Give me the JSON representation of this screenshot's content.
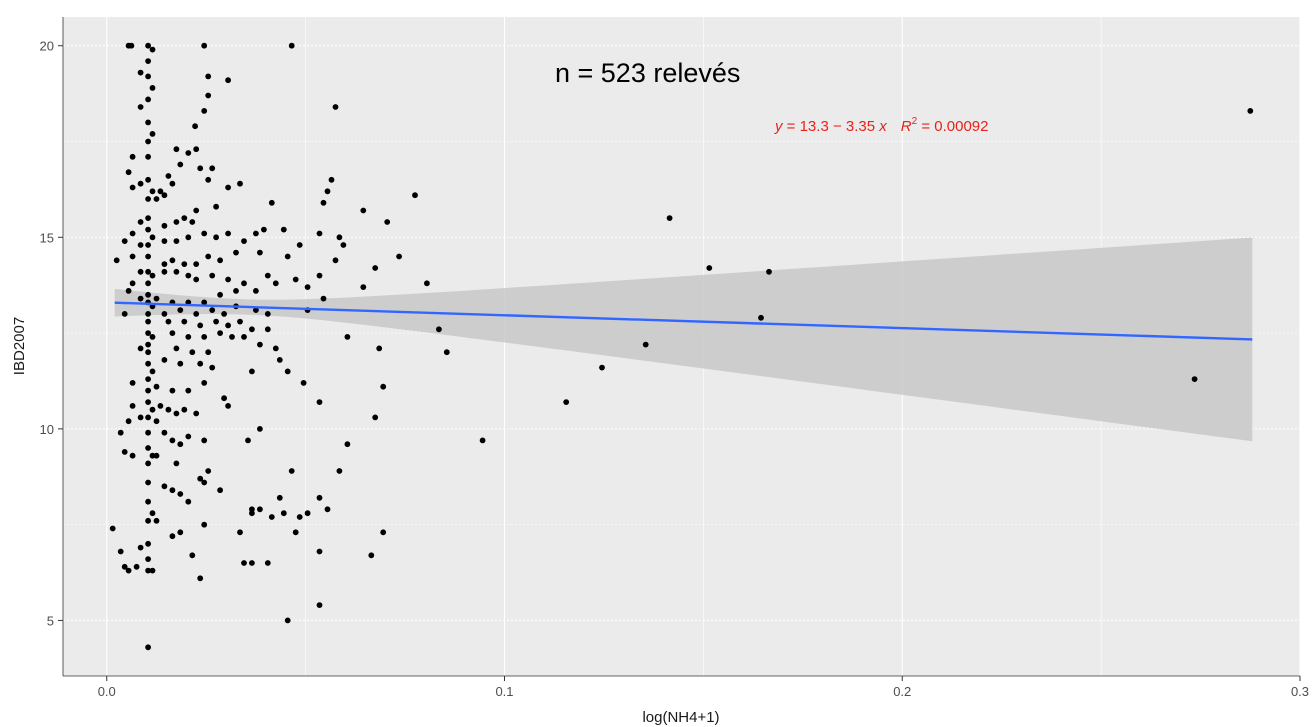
{
  "chart_data": {
    "type": "scatter",
    "xlabel": "log(NH4+1)",
    "ylabel": "IBD2007",
    "xlim": [
      -0.011,
      0.3
    ],
    "ylim": [
      3.55,
      20.75
    ],
    "x_ticks": [
      0.0,
      0.1,
      0.2,
      0.3
    ],
    "x_tick_labels": [
      "0.0",
      "0.1",
      "0.2",
      "0.3"
    ],
    "y_ticks": [
      5,
      10,
      15,
      20
    ],
    "y_tick_labels": [
      "5",
      "10",
      "15",
      "20"
    ],
    "grid": true,
    "annotations": {
      "n_label": "n = 523 relevés",
      "equation": {
        "y_part": "y",
        "body": " = 13.3 − 3.35 ",
        "x_part": "x",
        "r_part": "R",
        "sup": "2",
        "r_value": " = 0.00092"
      }
    },
    "regression": {
      "intercept": 13.3,
      "slope": -3.35,
      "r2": 0.00092,
      "x_range": [
        0.002,
        0.288
      ],
      "ci_lower_start": 12.95,
      "ci_upper_start": 13.67,
      "ci_lower_end": 9.68,
      "ci_upper_end": 15.0,
      "ci_narrowest_x": 0.035
    },
    "colors": {
      "panel": "#EBEBEB",
      "grid": "#ffffff",
      "points": "#000000",
      "line": "#3366FF",
      "ribbon": "#C8C8C8",
      "equation": "#E8221A"
    },
    "points": [
      [
        0.0104,
        20.0
      ],
      [
        0.0104,
        19.6
      ],
      [
        0.0104,
        19.2
      ],
      [
        0.0104,
        18.6
      ],
      [
        0.0104,
        18.0
      ],
      [
        0.0104,
        17.5
      ],
      [
        0.0104,
        17.1
      ],
      [
        0.0104,
        16.5
      ],
      [
        0.0104,
        16.0
      ],
      [
        0.0104,
        15.5
      ],
      [
        0.0104,
        15.2
      ],
      [
        0.0104,
        14.8
      ],
      [
        0.0104,
        14.5
      ],
      [
        0.0104,
        14.1
      ],
      [
        0.0104,
        13.8
      ],
      [
        0.0104,
        13.5
      ],
      [
        0.0104,
        13.3
      ],
      [
        0.0104,
        13.0
      ],
      [
        0.0104,
        12.8
      ],
      [
        0.0104,
        12.5
      ],
      [
        0.0104,
        12.2
      ],
      [
        0.0104,
        12.0
      ],
      [
        0.0104,
        11.7
      ],
      [
        0.0104,
        11.3
      ],
      [
        0.0104,
        11.0
      ],
      [
        0.0104,
        10.7
      ],
      [
        0.0104,
        10.3
      ],
      [
        0.0104,
        9.9
      ],
      [
        0.0104,
        9.5
      ],
      [
        0.0104,
        9.1
      ],
      [
        0.0104,
        8.6
      ],
      [
        0.0104,
        8.1
      ],
      [
        0.0104,
        7.6
      ],
      [
        0.0104,
        7.0
      ],
      [
        0.0104,
        6.6
      ],
      [
        0.0104,
        6.3
      ],
      [
        0.0104,
        4.3
      ],
      [
        0.0115,
        19.9
      ],
      [
        0.0115,
        18.9
      ],
      [
        0.0115,
        17.7
      ],
      [
        0.0115,
        16.2
      ],
      [
        0.0115,
        15.0
      ],
      [
        0.0115,
        14.0
      ],
      [
        0.0115,
        13.2
      ],
      [
        0.0115,
        12.4
      ],
      [
        0.0115,
        11.5
      ],
      [
        0.0115,
        10.5
      ],
      [
        0.0115,
        9.3
      ],
      [
        0.0115,
        7.8
      ],
      [
        0.0055,
        20.0
      ],
      [
        0.0062,
        20.0
      ],
      [
        0.0245,
        20.0
      ],
      [
        0.0465,
        20.0
      ],
      [
        0.0085,
        19.3
      ],
      [
        0.0255,
        19.2
      ],
      [
        0.0305,
        19.1
      ],
      [
        0.0255,
        18.7
      ],
      [
        0.0575,
        18.4
      ],
      [
        0.0085,
        18.4
      ],
      [
        0.0245,
        18.3
      ],
      [
        0.0222,
        17.9
      ],
      [
        0.0065,
        17.1
      ],
      [
        0.0175,
        17.3
      ],
      [
        0.0205,
        17.2
      ],
      [
        0.0225,
        17.3
      ],
      [
        0.0055,
        16.7
      ],
      [
        0.0185,
        16.9
      ],
      [
        0.0235,
        16.8
      ],
      [
        0.0265,
        16.8
      ],
      [
        0.0155,
        16.6
      ],
      [
        0.0165,
        16.4
      ],
      [
        0.0255,
        16.5
      ],
      [
        0.0085,
        16.4
      ],
      [
        0.0065,
        16.3
      ],
      [
        0.0135,
        16.2
      ],
      [
        0.0145,
        16.1
      ],
      [
        0.0125,
        16.0
      ],
      [
        0.0305,
        16.3
      ],
      [
        0.0335,
        16.4
      ],
      [
        0.0565,
        16.5
      ],
      [
        0.0555,
        16.2
      ],
      [
        0.0545,
        15.9
      ],
      [
        0.0775,
        16.1
      ],
      [
        0.0415,
        15.9
      ],
      [
        0.0275,
        15.8
      ],
      [
        0.0225,
        15.7
      ],
      [
        0.0195,
        15.5
      ],
      [
        0.0215,
        15.4
      ],
      [
        0.0175,
        15.4
      ],
      [
        0.0145,
        15.3
      ],
      [
        0.0085,
        15.4
      ],
      [
        0.0065,
        15.1
      ],
      [
        0.0045,
        14.9
      ],
      [
        0.0025,
        14.4
      ],
      [
        0.0065,
        14.5
      ],
      [
        0.0085,
        14.8
      ],
      [
        0.0145,
        14.9
      ],
      [
        0.0175,
        14.9
      ],
      [
        0.0205,
        15.0
      ],
      [
        0.0245,
        15.1
      ],
      [
        0.0275,
        15.0
      ],
      [
        0.0305,
        15.1
      ],
      [
        0.0345,
        14.9
      ],
      [
        0.0375,
        15.1
      ],
      [
        0.0395,
        15.2
      ],
      [
        0.0445,
        15.2
      ],
      [
        0.0535,
        15.1
      ],
      [
        0.0585,
        15.0
      ],
      [
        0.0595,
        14.8
      ],
      [
        0.0645,
        15.7
      ],
      [
        0.0705,
        15.4
      ],
      [
        0.0485,
        14.8
      ],
      [
        0.0455,
        14.5
      ],
      [
        0.0385,
        14.6
      ],
      [
        0.0325,
        14.6
      ],
      [
        0.0285,
        14.4
      ],
      [
        0.0255,
        14.5
      ],
      [
        0.0225,
        14.3
      ],
      [
        0.0195,
        14.3
      ],
      [
        0.0165,
        14.4
      ],
      [
        0.0145,
        14.3
      ],
      [
        0.0085,
        14.1
      ],
      [
        0.0065,
        13.8
      ],
      [
        0.0145,
        14.1
      ],
      [
        0.0175,
        14.1
      ],
      [
        0.0205,
        14.0
      ],
      [
        0.0225,
        13.9
      ],
      [
        0.0265,
        14.0
      ],
      [
        0.0305,
        13.9
      ],
      [
        0.0345,
        13.8
      ],
      [
        0.0405,
        14.0
      ],
      [
        0.0425,
        13.8
      ],
      [
        0.0535,
        14.0
      ],
      [
        0.0575,
        14.4
      ],
      [
        0.0675,
        14.2
      ],
      [
        0.0735,
        14.5
      ],
      [
        0.0805,
        13.8
      ],
      [
        0.0645,
        13.7
      ],
      [
        0.0545,
        13.4
      ],
      [
        0.0505,
        13.7
      ],
      [
        0.0475,
        13.9
      ],
      [
        0.0375,
        13.6
      ],
      [
        0.0325,
        13.6
      ],
      [
        0.0285,
        13.5
      ],
      [
        0.0245,
        13.3
      ],
      [
        0.0205,
        13.3
      ],
      [
        0.0165,
        13.3
      ],
      [
        0.0125,
        13.4
      ],
      [
        0.0085,
        13.4
      ],
      [
        0.0055,
        13.6
      ],
      [
        0.0045,
        13.0
      ],
      [
        0.0145,
        13.0
      ],
      [
        0.0185,
        13.1
      ],
      [
        0.0225,
        13.0
      ],
      [
        0.0265,
        13.1
      ],
      [
        0.0295,
        13.0
      ],
      [
        0.0325,
        13.2
      ],
      [
        0.0375,
        13.1
      ],
      [
        0.0405,
        13.0
      ],
      [
        0.0505,
        13.1
      ],
      [
        0.0155,
        12.8
      ],
      [
        0.0195,
        12.8
      ],
      [
        0.0235,
        12.7
      ],
      [
        0.0275,
        12.8
      ],
      [
        0.0305,
        12.7
      ],
      [
        0.0335,
        12.8
      ],
      [
        0.0365,
        12.6
      ],
      [
        0.0405,
        12.6
      ],
      [
        0.0165,
        12.5
      ],
      [
        0.0205,
        12.4
      ],
      [
        0.0245,
        12.4
      ],
      [
        0.0285,
        12.5
      ],
      [
        0.0315,
        12.4
      ],
      [
        0.0345,
        12.4
      ],
      [
        0.0385,
        12.2
      ],
      [
        0.0425,
        12.1
      ],
      [
        0.0605,
        12.4
      ],
      [
        0.0685,
        12.1
      ],
      [
        0.0085,
        12.1
      ],
      [
        0.0175,
        12.1
      ],
      [
        0.0215,
        12.0
      ],
      [
        0.0255,
        12.0
      ],
      [
        0.0145,
        11.8
      ],
      [
        0.0185,
        11.7
      ],
      [
        0.0235,
        11.7
      ],
      [
        0.0265,
        11.6
      ],
      [
        0.0365,
        11.5
      ],
      [
        0.0435,
        11.8
      ],
      [
        0.0455,
        11.5
      ],
      [
        0.0495,
        11.2
      ],
      [
        0.0065,
        11.2
      ],
      [
        0.0125,
        11.1
      ],
      [
        0.0165,
        11.0
      ],
      [
        0.0205,
        11.0
      ],
      [
        0.0245,
        11.2
      ],
      [
        0.0295,
        10.8
      ],
      [
        0.0535,
        10.7
      ],
      [
        0.0695,
        11.1
      ],
      [
        0.0065,
        10.6
      ],
      [
        0.0135,
        10.6
      ],
      [
        0.0155,
        10.5
      ],
      [
        0.0175,
        10.4
      ],
      [
        0.0195,
        10.5
      ],
      [
        0.0225,
        10.4
      ],
      [
        0.0305,
        10.6
      ],
      [
        0.0675,
        10.3
      ],
      [
        0.0085,
        10.3
      ],
      [
        0.0055,
        10.2
      ],
      [
        0.0035,
        9.9
      ],
      [
        0.0125,
        10.2
      ],
      [
        0.0145,
        9.9
      ],
      [
        0.0165,
        9.7
      ],
      [
        0.0185,
        9.6
      ],
      [
        0.0205,
        9.8
      ],
      [
        0.0245,
        9.7
      ],
      [
        0.0355,
        9.7
      ],
      [
        0.0385,
        10.0
      ],
      [
        0.0605,
        9.6
      ],
      [
        0.0045,
        9.4
      ],
      [
        0.0065,
        9.3
      ],
      [
        0.0125,
        9.3
      ],
      [
        0.0175,
        9.1
      ],
      [
        0.0235,
        8.7
      ],
      [
        0.0255,
        8.9
      ],
      [
        0.0465,
        8.9
      ],
      [
        0.0585,
        8.9
      ],
      [
        0.0145,
        8.5
      ],
      [
        0.0165,
        8.4
      ],
      [
        0.0185,
        8.3
      ],
      [
        0.0245,
        8.6
      ],
      [
        0.0285,
        8.4
      ],
      [
        0.0205,
        8.1
      ],
      [
        0.0435,
        8.2
      ],
      [
        0.0535,
        8.2
      ],
      [
        0.0365,
        7.9
      ],
      [
        0.0385,
        7.9
      ],
      [
        0.0415,
        7.7
      ],
      [
        0.0445,
        7.8
      ],
      [
        0.0485,
        7.7
      ],
      [
        0.0505,
        7.8
      ],
      [
        0.0555,
        7.9
      ],
      [
        0.0125,
        7.6
      ],
      [
        0.0165,
        7.2
      ],
      [
        0.0185,
        7.3
      ],
      [
        0.0245,
        7.5
      ],
      [
        0.0335,
        7.3
      ],
      [
        0.0695,
        7.3
      ],
      [
        0.0015,
        7.4
      ],
      [
        0.0035,
        6.8
      ],
      [
        0.0085,
        6.9
      ],
      [
        0.0045,
        6.4
      ],
      [
        0.0055,
        6.3
      ],
      [
        0.0075,
        6.4
      ],
      [
        0.0115,
        6.3
      ],
      [
        0.0215,
        6.7
      ],
      [
        0.0345,
        6.5
      ],
      [
        0.0365,
        6.5
      ],
      [
        0.0405,
        6.5
      ],
      [
        0.0535,
        6.8
      ],
      [
        0.0665,
        6.7
      ],
      [
        0.0235,
        6.1
      ],
      [
        0.0535,
        5.4
      ],
      [
        0.0455,
        5.0
      ],
      [
        0.0365,
        7.8
      ],
      [
        0.0475,
        7.3
      ],
      [
        0.0855,
        12.0
      ],
      [
        0.0835,
        12.6
      ],
      [
        0.0945,
        9.7
      ],
      [
        0.1155,
        10.7
      ],
      [
        0.1245,
        11.6
      ],
      [
        0.1355,
        12.2
      ],
      [
        0.1415,
        15.5
      ],
      [
        0.1515,
        14.2
      ],
      [
        0.1645,
        12.9
      ],
      [
        0.1665,
        14.1
      ],
      [
        0.2735,
        11.3
      ],
      [
        0.2875,
        18.3
      ]
    ]
  }
}
